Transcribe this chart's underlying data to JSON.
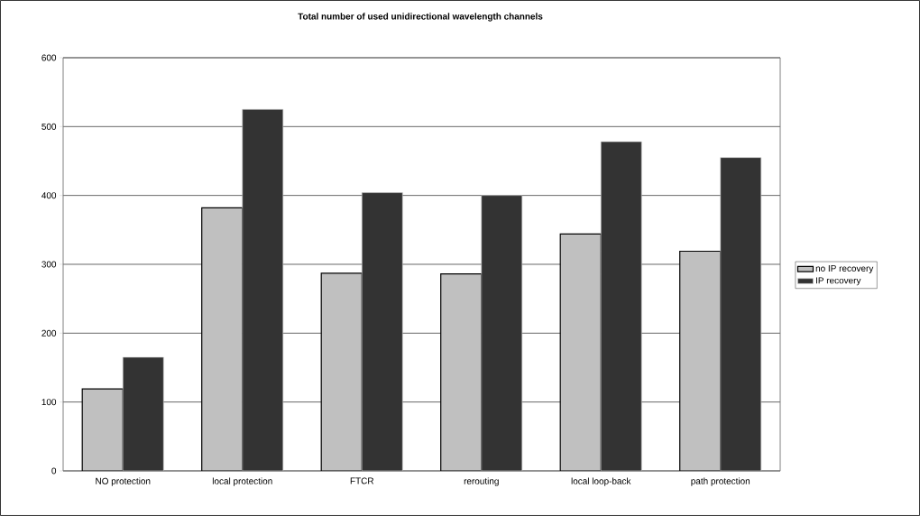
{
  "chart_data": {
    "type": "bar",
    "title": "Total number of used unidirectional wavelength channels",
    "categories": [
      "NO protection",
      "local protection",
      "FTCR",
      "rerouting",
      "local loop-back",
      "path protection"
    ],
    "series": [
      {
        "name": "no IP recovery",
        "color": "#c0c0c0",
        "values": [
          119,
          382,
          287,
          286,
          344,
          319
        ]
      },
      {
        "name": "IP recovery",
        "color": "#333333",
        "values": [
          165,
          525,
          404,
          400,
          478,
          455
        ]
      }
    ],
    "ylim": [
      0,
      600
    ],
    "yticks": [
      0,
      100,
      200,
      300,
      400,
      500,
      600
    ],
    "grid": "y",
    "legend": "right"
  }
}
